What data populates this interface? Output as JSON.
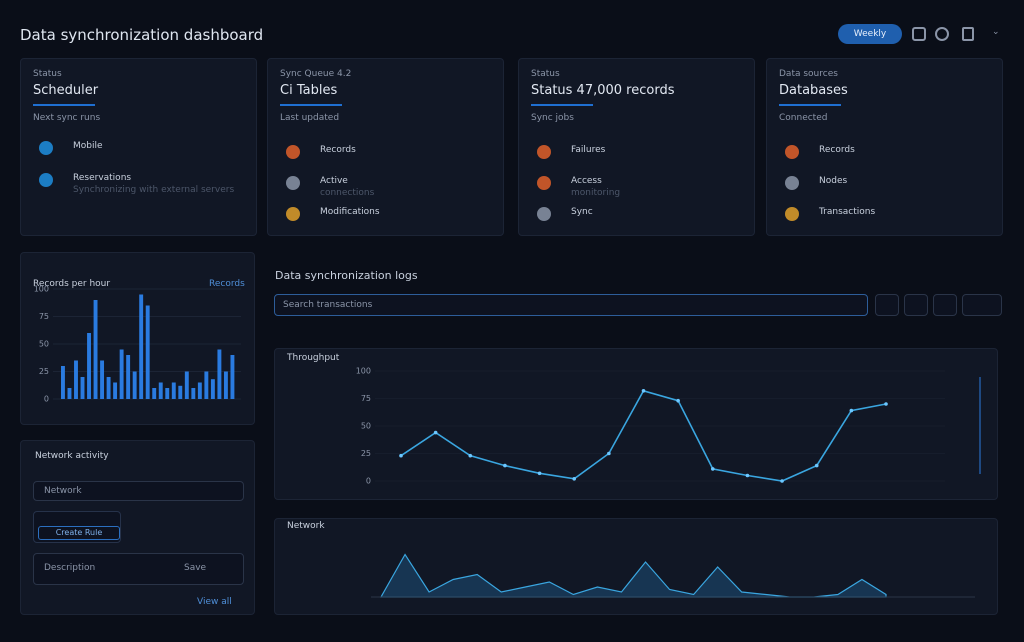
{
  "header": {
    "title": "Data synchronization dashboard",
    "button": "Weekly"
  },
  "cards": [
    {
      "label": "Status",
      "heading": "Scheduler",
      "caption": "Next sync runs",
      "items": [
        {
          "label": "Mobile",
          "detail": ""
        },
        {
          "label": "Reservations",
          "detail": "Synchronizing with external servers"
        }
      ]
    },
    {
      "label": "Sync Queue 4.2",
      "heading": "Ci Tables",
      "caption": "Last updated",
      "items": [
        {
          "label": "Records",
          "detail": ""
        },
        {
          "label": "Active",
          "detail": "connections"
        },
        {
          "label": "Modifications",
          "detail": ""
        }
      ]
    },
    {
      "label": "Status",
      "heading": "Status  47,000 records",
      "caption": "Sync jobs",
      "items": [
        {
          "label": "Failures",
          "detail": ""
        },
        {
          "label": "Access",
          "detail": "monitoring"
        },
        {
          "label": "Sync",
          "detail": ""
        }
      ]
    },
    {
      "label": "Data sources",
      "heading": "Databases",
      "caption": "Connected",
      "items": [
        {
          "label": "Records",
          "detail": ""
        },
        {
          "label": "Nodes",
          "detail": ""
        },
        {
          "label": "Transactions",
          "detail": ""
        }
      ]
    }
  ],
  "bar_chart": {
    "title": "Records per hour",
    "legend": "Records",
    "values": [
      30,
      10,
      35,
      20,
      60,
      90,
      35,
      20,
      15,
      45,
      40,
      25,
      95,
      85,
      10,
      15,
      10,
      15,
      12,
      25,
      10,
      15,
      25,
      18,
      45,
      25,
      40
    ],
    "ylim": [
      0,
      100
    ],
    "yticks": [
      0,
      25,
      50,
      75,
      100
    ]
  },
  "network": {
    "title": "Network activity",
    "filter": "Network",
    "button": "Create Rule",
    "description": "Description",
    "save": "Save",
    "footer": "View all"
  },
  "logs": {
    "title": "Data synchronization logs",
    "search": "Search transactions"
  },
  "line_chart": {
    "title": "Throughput",
    "values": [
      23,
      44,
      23,
      14,
      7,
      2,
      25,
      82,
      73,
      11,
      5,
      0,
      14,
      64,
      70
    ],
    "ylim": [
      0,
      100
    ],
    "yticks": [
      0,
      25,
      50,
      75,
      100
    ]
  },
  "area_chart": {
    "title": "Network",
    "values": [
      0,
      85,
      10,
      35,
      45,
      10,
      20,
      30,
      5,
      20,
      10,
      70,
      15,
      5,
      60,
      10,
      5,
      0,
      0,
      5,
      35,
      5
    ],
    "ylim": [
      0,
      100
    ]
  }
}
